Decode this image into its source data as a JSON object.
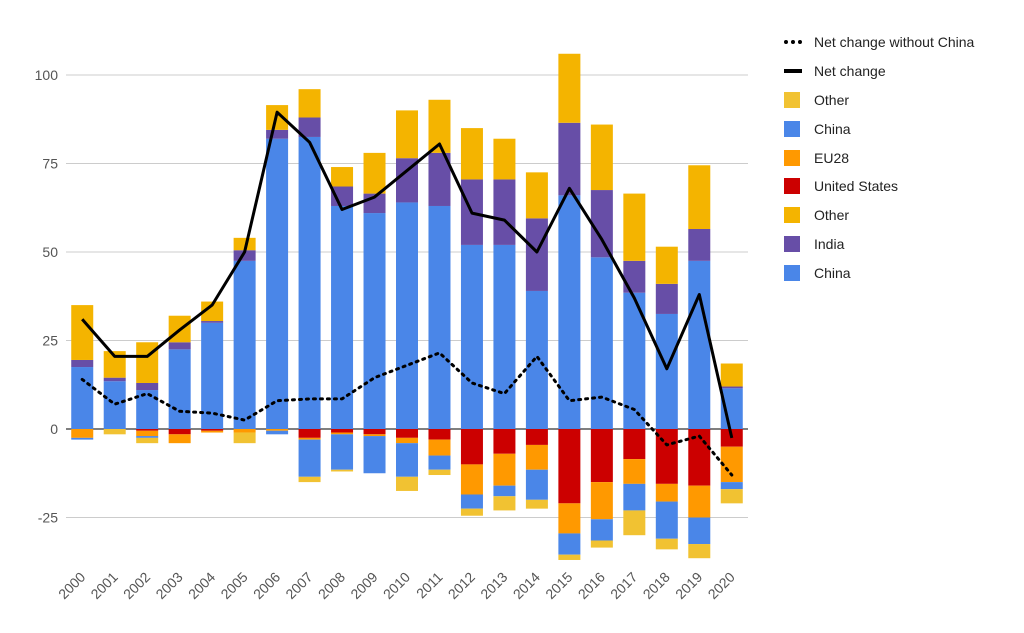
{
  "chart_data": {
    "type": "bar",
    "stacked": true,
    "title": "",
    "xlabel": "",
    "ylabel": "",
    "ylim": [
      -40,
      112
    ],
    "yticks": [
      -25,
      0,
      25,
      50,
      75,
      100
    ],
    "grid": true,
    "legend_position": "right",
    "categories": [
      "2000",
      "2001",
      "2002",
      "2003",
      "2004",
      "2005",
      "2006",
      "2007",
      "2008",
      "2009",
      "2010",
      "2011",
      "2012",
      "2013",
      "2014",
      "2015",
      "2016",
      "2017",
      "2018",
      "2019",
      "2020"
    ],
    "positive_series": [
      {
        "name": "China",
        "color": "#4a86e8",
        "values": [
          17.5,
          13.5,
          11,
          22.5,
          30,
          47.5,
          82,
          82.5,
          63,
          61,
          64,
          63,
          52,
          52,
          39,
          66,
          48.5,
          38.5,
          32.5,
          47.5,
          11.5
        ]
      },
      {
        "name": "India",
        "color": "#674ea7",
        "values": [
          2,
          1,
          2,
          2,
          0.5,
          3,
          2.5,
          5.5,
          5.5,
          5.5,
          12.5,
          15,
          18.5,
          18.5,
          20.5,
          20.5,
          19,
          9,
          8.5,
          9,
          0.5
        ]
      },
      {
        "name": "Other",
        "color": "#f4b400",
        "values": [
          15.5,
          7.5,
          11.5,
          7.5,
          5.5,
          3.5,
          7,
          8,
          5.5,
          11.5,
          13.5,
          15,
          14.5,
          11.5,
          13,
          19.5,
          18.5,
          19,
          10.5,
          18,
          6.5
        ]
      }
    ],
    "negative_series": [
      {
        "name": "United States",
        "color": "#cc0000",
        "values": [
          0,
          0,
          -0.5,
          -1.5,
          -0.5,
          0,
          0,
          -2.5,
          -1,
          -1.5,
          -2.5,
          -3,
          -10,
          -7,
          -4.5,
          -21,
          -15,
          -8.5,
          -15.5,
          -16,
          -5
        ]
      },
      {
        "name": "EU28",
        "color": "#ff9900",
        "values": [
          -2.5,
          0,
          -1.5,
          -2.5,
          -0.5,
          -1,
          -0.5,
          -0.5,
          -0.5,
          -0.5,
          -1.5,
          -4.5,
          -8.5,
          -9,
          -7,
          -8.5,
          -10.5,
          -7,
          -5,
          -9,
          -10
        ]
      },
      {
        "name": "China",
        "color": "#4a86e8",
        "values": [
          -0.5,
          0,
          -0.5,
          0,
          0,
          0,
          -1,
          -10.5,
          -10,
          -10.5,
          -9.5,
          -4,
          -4,
          -3,
          -8.5,
          -6,
          -6,
          -7.5,
          -10.5,
          -7.5,
          -2
        ]
      },
      {
        "name": "Other",
        "color": "#f1c232",
        "values": [
          0,
          -1.5,
          -1.5,
          0,
          0,
          -3,
          0,
          -1.5,
          -0.5,
          0,
          -4,
          -1.5,
          -2,
          -4,
          -2.5,
          -1.5,
          -2,
          -7,
          -3,
          -4,
          -4
        ]
      }
    ],
    "line_series": [
      {
        "name": "Net change",
        "style": "solid",
        "values": [
          31,
          20.5,
          20.5,
          28,
          35,
          50,
          89.5,
          81,
          62,
          65.5,
          73,
          80.5,
          61,
          59,
          50,
          68,
          53.5,
          37,
          17,
          38,
          -2.5
        ]
      },
      {
        "name": "Net change without China",
        "style": "dotted",
        "values": [
          14,
          7,
          10,
          5,
          4.5,
          2.5,
          8,
          8.5,
          8.5,
          14.5,
          18,
          21.5,
          13,
          10,
          20.5,
          8,
          9,
          5.5,
          -4.5,
          -2,
          -13
        ]
      }
    ],
    "legend": [
      {
        "label": "Net change without China",
        "kind": "dotted-line",
        "color": "#000000"
      },
      {
        "label": "Net change",
        "kind": "solid-line",
        "color": "#000000"
      },
      {
        "label": "Other",
        "kind": "swatch",
        "color": "#f1c232"
      },
      {
        "label": "China",
        "kind": "swatch",
        "color": "#4a86e8"
      },
      {
        "label": "EU28",
        "kind": "swatch",
        "color": "#ff9900"
      },
      {
        "label": "United States",
        "kind": "swatch",
        "color": "#cc0000"
      },
      {
        "label": "Other",
        "kind": "swatch",
        "color": "#f4b400"
      },
      {
        "label": "India",
        "kind": "swatch",
        "color": "#674ea7"
      },
      {
        "label": "China",
        "kind": "swatch",
        "color": "#4a86e8"
      }
    ]
  }
}
